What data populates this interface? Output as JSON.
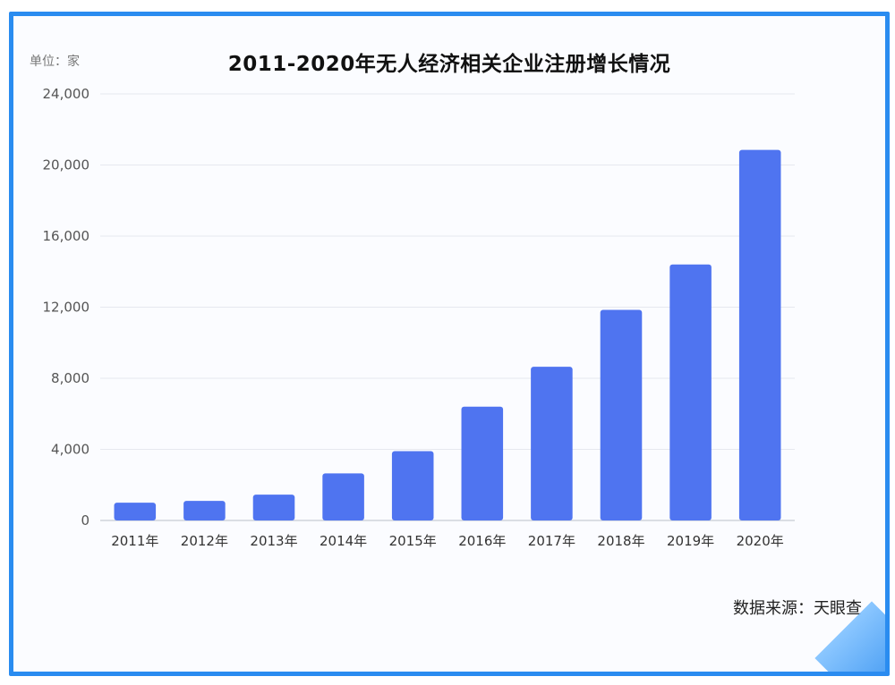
{
  "chart_data": {
    "type": "bar",
    "title": "2011-2020年无人经济相关企业注册增长情况",
    "unit_label": "单位：家",
    "source": "数据来源：天眼查",
    "categories": [
      "2011年",
      "2012年",
      "2013年",
      "2014年",
      "2015年",
      "2016年",
      "2017年",
      "2018年",
      "2019年",
      "2020年"
    ],
    "series": [
      {
        "values": [
          1000,
          1100,
          1450,
          2650,
          3900,
          6400,
          8650,
          11850,
          14400,
          20850
        ]
      }
    ],
    "ylim": [
      0,
      24000
    ],
    "yticks": [
      "0",
      "4,000",
      "8,000",
      "12,000",
      "16,000",
      "20,000",
      "24,000"
    ],
    "ytick_values": [
      0,
      4000,
      8000,
      12000,
      16000,
      20000,
      24000
    ],
    "xlabel": "",
    "ylabel": "",
    "grid": true,
    "legend": "none",
    "bar_color": "#4f74f0",
    "grid_color": "#e6e8ef",
    "axis_color": "#cfd3dc"
  }
}
